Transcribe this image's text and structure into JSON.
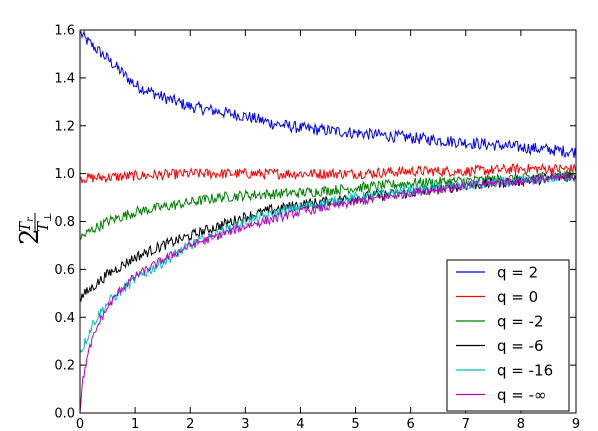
{
  "chart_data": {
    "type": "line",
    "xlim": [
      0,
      9
    ],
    "ylim": [
      0.0,
      1.6
    ],
    "x_ticks": [
      "0",
      "1",
      "2",
      "3",
      "4",
      "5",
      "6",
      "7",
      "8",
      "9"
    ],
    "y_ticks": [
      "0.0",
      "0.2",
      "0.4",
      "0.6",
      "0.8",
      "1.0",
      "1.2",
      "1.4",
      "1.6"
    ],
    "ylabel": {
      "main": "2",
      "numerator": "T",
      "numerator_sub": "r",
      "denominator": "T",
      "denominator_sub": "⊥"
    },
    "xlabel": "",
    "title": "",
    "grid": false,
    "legend_position": "lower-right",
    "series": [
      {
        "name": "q = 2",
        "color": "#0000ff",
        "noise": 0.025,
        "x": [
          0,
          0.1,
          0.25,
          0.5,
          1,
          1.5,
          2,
          2.5,
          3,
          3.5,
          4,
          5,
          6,
          7,
          8,
          9
        ],
        "values": [
          1.59,
          1.56,
          1.53,
          1.48,
          1.37,
          1.32,
          1.28,
          1.26,
          1.24,
          1.21,
          1.19,
          1.17,
          1.15,
          1.13,
          1.11,
          1.09
        ]
      },
      {
        "name": "q = 0",
        "color": "#ff0000",
        "noise": 0.022,
        "x": [
          0,
          1,
          2,
          3,
          4,
          5,
          6,
          7,
          8,
          9
        ],
        "values": [
          0.98,
          0.99,
          1.0,
          1.0,
          1.0,
          1.0,
          1.01,
          1.01,
          1.02,
          1.02
        ]
      },
      {
        "name": "q = -2",
        "color": "#008000",
        "noise": 0.022,
        "x": [
          0,
          0.25,
          0.5,
          1,
          1.5,
          2,
          2.5,
          3,
          4,
          5,
          6,
          7,
          8,
          9
        ],
        "values": [
          0.73,
          0.77,
          0.8,
          0.84,
          0.86,
          0.88,
          0.9,
          0.91,
          0.92,
          0.94,
          0.96,
          0.97,
          0.98,
          1.0
        ]
      },
      {
        "name": "q = -6",
        "color": "#000000",
        "noise": 0.022,
        "x": [
          0,
          0.1,
          0.25,
          0.5,
          1,
          1.5,
          2,
          2.5,
          3,
          3.5,
          4,
          5,
          6,
          7,
          8,
          9
        ],
        "values": [
          0.48,
          0.5,
          0.53,
          0.58,
          0.65,
          0.7,
          0.74,
          0.78,
          0.82,
          0.85,
          0.87,
          0.9,
          0.92,
          0.95,
          0.97,
          0.99
        ]
      },
      {
        "name": "q = -16",
        "color": "#00bfbf",
        "noise": 0.022,
        "x": [
          0,
          0.1,
          0.25,
          0.5,
          1,
          1.5,
          2,
          2.5,
          3,
          3.5,
          4,
          5,
          6,
          7,
          8,
          9
        ],
        "values": [
          0.25,
          0.3,
          0.38,
          0.46,
          0.56,
          0.63,
          0.7,
          0.75,
          0.8,
          0.83,
          0.86,
          0.9,
          0.93,
          0.95,
          0.97,
          0.99
        ]
      },
      {
        "name": "q = -∞",
        "color": "#bf00bf",
        "noise": 0.018,
        "x": [
          0,
          0.02,
          0.05,
          0.1,
          0.2,
          0.35,
          0.5,
          0.75,
          1,
          1.5,
          2,
          2.5,
          3,
          3.5,
          4,
          5,
          6,
          7,
          8,
          9
        ],
        "values": [
          0.0,
          0.07,
          0.13,
          0.2,
          0.29,
          0.38,
          0.44,
          0.52,
          0.57,
          0.64,
          0.7,
          0.74,
          0.78,
          0.81,
          0.84,
          0.88,
          0.92,
          0.95,
          0.97,
          0.99
        ]
      }
    ]
  }
}
